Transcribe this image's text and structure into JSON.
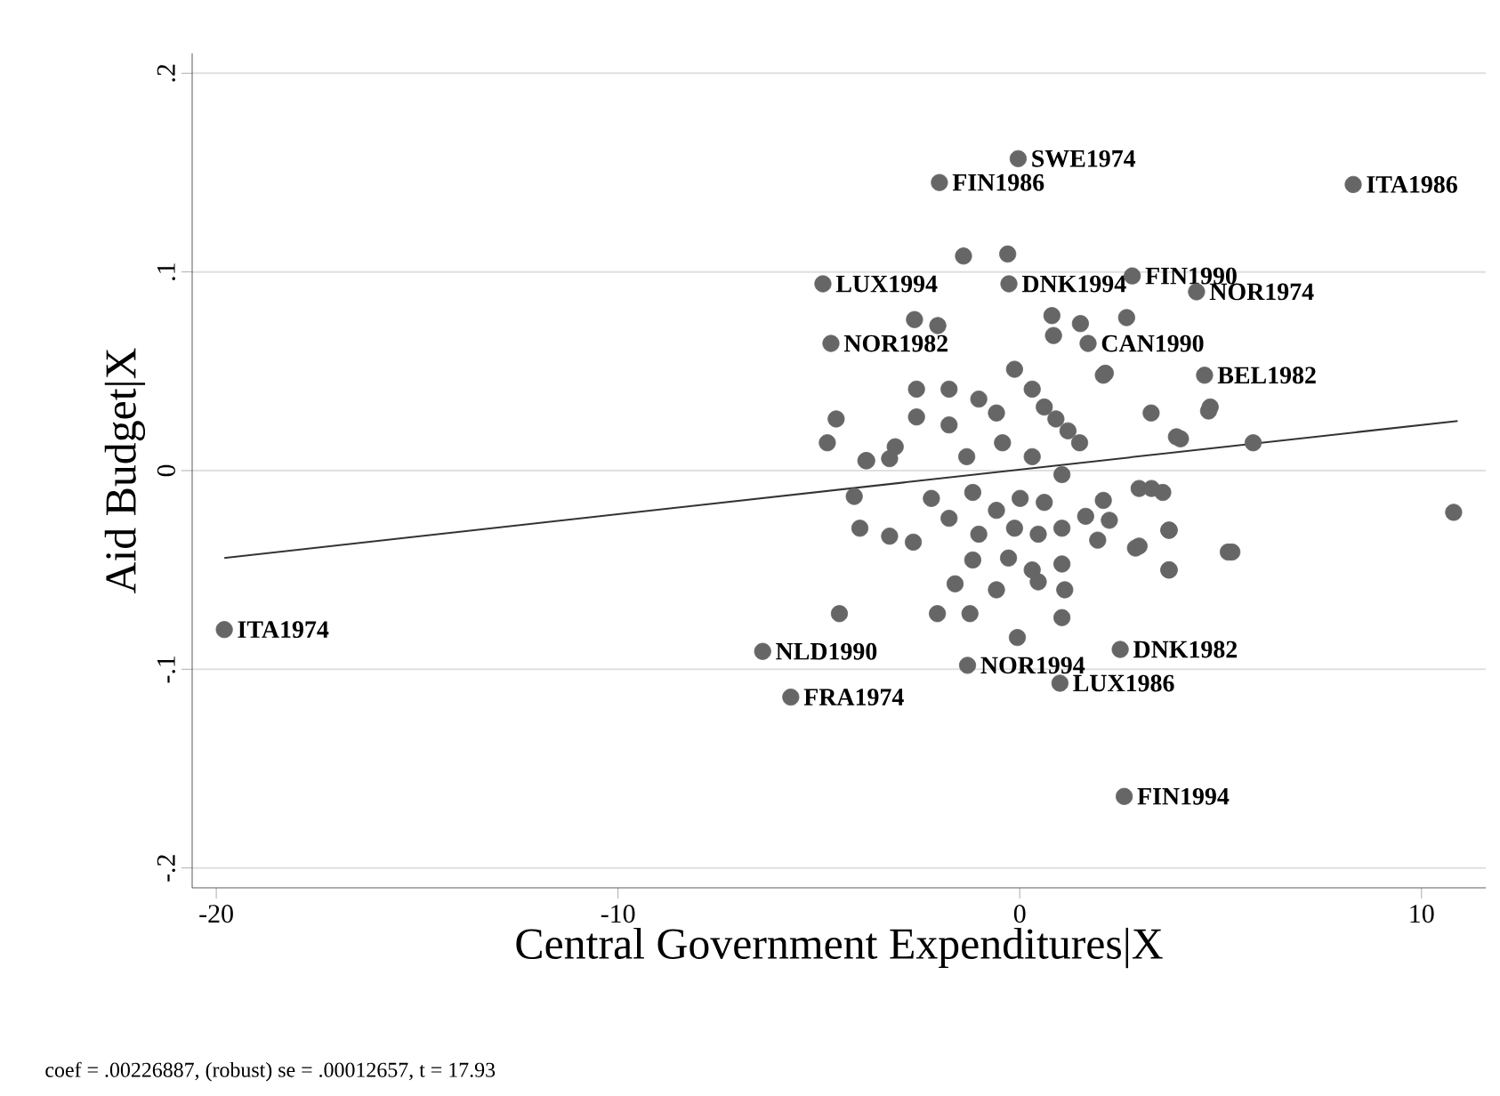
{
  "chart_data": {
    "type": "scatter",
    "xlabel": "Central Government Expenditures|X",
    "ylabel": "Aid Budget|X",
    "xlim": [
      -20.6,
      11.6
    ],
    "ylim": [
      -0.21,
      0.21
    ],
    "xticks": [
      -20,
      -10,
      0,
      10
    ],
    "yticks": [
      {
        "value": -0.2,
        "label": "-.2"
      },
      {
        "value": -0.1,
        "label": "-.1"
      },
      0,
      {
        "value": 0.1,
        "label": ".1"
      },
      {
        "value": 0.2,
        "label": ".2"
      }
    ],
    "grid": "y",
    "series": [
      {
        "color": "#666666",
        "marker": "circle",
        "x": [
          -0.04,
          -2.0,
          8.3,
          -1.4,
          -0.3,
          -4.9,
          -0.27,
          2.8,
          4.4,
          -4.7,
          1.7,
          4.6,
          -19.8,
          10.8,
          -6.4,
          -5.7,
          -1.3,
          2.5,
          1.0,
          2.6,
          -2.57,
          -1.76,
          -1.02,
          -0.58,
          -0.13,
          0.31,
          0.61,
          0.9,
          1.2,
          1.49,
          2.08,
          3.27,
          4.74,
          4.0,
          -4.57,
          -2.57,
          -1.76,
          -1.32,
          -3.83,
          -3.24,
          -0.43,
          0.31,
          1.05,
          -4.12,
          -2.2,
          -1.17,
          -0.58,
          0.01,
          0.61,
          2.08,
          2.97,
          3.56,
          -3.98,
          -3.24,
          -2.65,
          -1.76,
          -1.02,
          -0.13,
          0.46,
          1.05,
          1.64,
          2.23,
          3.71,
          5.19,
          -1.17,
          -0.28,
          0.31,
          1.05,
          1.94,
          2.97,
          3.71,
          -1.61,
          -0.58,
          0.46,
          1.12,
          -4.49,
          -2.05,
          -1.24,
          1.05,
          -0.06,
          3.28,
          3.9,
          5.81,
          4.7,
          3.72,
          5.28,
          3.72,
          2.88,
          -2.62,
          -2.04,
          0.8,
          1.51,
          2.66,
          0.84,
          2.13,
          -4.79,
          -3.81,
          -3.1
        ],
        "values": [
          0.157,
          0.145,
          0.144,
          0.108,
          0.109,
          0.094,
          0.094,
          0.098,
          0.09,
          0.064,
          0.064,
          0.048,
          -0.08,
          -0.021,
          -0.091,
          -0.114,
          -0.098,
          -0.09,
          -0.107,
          -0.164,
          0.041,
          0.041,
          0.036,
          0.029,
          0.051,
          0.041,
          0.032,
          0.026,
          0.02,
          0.014,
          0.048,
          0.029,
          0.032,
          0.016,
          0.026,
          0.027,
          0.023,
          0.007,
          0.005,
          0.006,
          0.014,
          0.007,
          -0.002,
          -0.013,
          -0.014,
          -0.011,
          -0.02,
          -0.014,
          -0.016,
          -0.015,
          -0.009,
          -0.011,
          -0.029,
          -0.033,
          -0.036,
          -0.024,
          -0.032,
          -0.029,
          -0.032,
          -0.029,
          -0.023,
          -0.025,
          -0.03,
          -0.041,
          -0.045,
          -0.044,
          -0.05,
          -0.047,
          -0.035,
          -0.038,
          -0.05,
          -0.057,
          -0.06,
          -0.056,
          -0.06,
          -0.072,
          -0.072,
          -0.072,
          -0.074,
          -0.084,
          -0.009,
          0.017,
          0.014,
          0.03,
          -0.03,
          -0.041,
          -0.05,
          -0.039,
          0.076,
          0.073,
          0.078,
          0.074,
          0.077,
          0.068,
          0.049,
          0.014,
          0.005,
          0.012
        ]
      },
      {
        "type": "line",
        "color": "#333333",
        "line_style": "solid",
        "marker": "none",
        "x": [
          -19.8,
          10.9
        ],
        "values": [
          -0.044,
          0.025
        ]
      }
    ],
    "annotations": [
      {
        "text": "SWE1974",
        "x": -0.04,
        "y": 0.157
      },
      {
        "text": "FIN1986",
        "x": -2.0,
        "y": 0.145
      },
      {
        "text": "ITA1986",
        "x": 8.3,
        "y": 0.144
      },
      {
        "text": "LUX1994",
        "x": -4.9,
        "y": 0.094
      },
      {
        "text": "DNK1994",
        "x": -0.27,
        "y": 0.094
      },
      {
        "text": "FIN1990",
        "x": 2.8,
        "y": 0.098
      },
      {
        "text": "NOR1974",
        "x": 4.4,
        "y": 0.09
      },
      {
        "text": "NOR1982",
        "x": -4.7,
        "y": 0.064
      },
      {
        "text": "CAN1990",
        "x": 1.7,
        "y": 0.064
      },
      {
        "text": "BEL1982",
        "x": 4.6,
        "y": 0.048
      },
      {
        "text": "ITA1974",
        "x": -19.8,
        "y": -0.08
      },
      {
        "text": "NLD1990",
        "x": -6.4,
        "y": -0.091
      },
      {
        "text": "FRA1974",
        "x": -5.7,
        "y": -0.114
      },
      {
        "text": "NOR1994",
        "x": -1.3,
        "y": -0.098
      },
      {
        "text": "DNK1982",
        "x": 2.5,
        "y": -0.09
      },
      {
        "text": "LUX1986",
        "x": 1.0,
        "y": -0.107
      },
      {
        "text": "FIN1994",
        "x": 2.6,
        "y": -0.164
      },
      "coef = .00226887, (robust) se = .00012657, t = 17.93"
    ]
  }
}
